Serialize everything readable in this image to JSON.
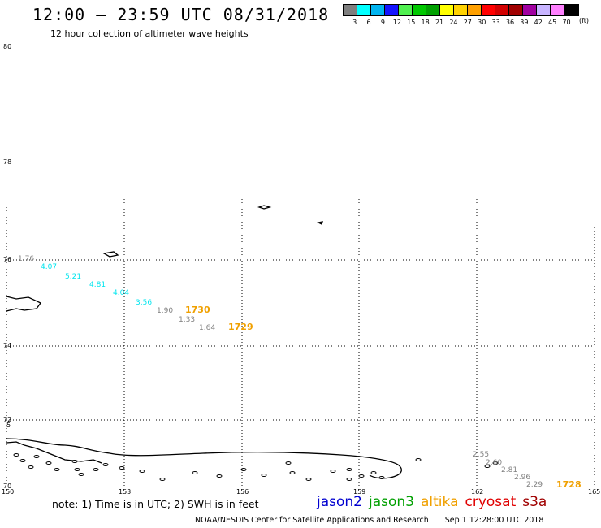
{
  "header": {
    "title": "12:00 – 23:59 UTC 08/31/2018",
    "subtitle": "12 hour collection of altimeter wave heights"
  },
  "legend": {
    "colors": [
      "#7f7f7f",
      "#00ffff",
      "#00b4f0",
      "#1414ff",
      "#50f050",
      "#00c800",
      "#00a000",
      "#ffff00",
      "#ffd200",
      "#ffa000",
      "#ff0000",
      "#d20000",
      "#a00000",
      "#a000a0",
      "#c8b4ff",
      "#ff80ff",
      "#000000"
    ],
    "labels": [
      "3",
      "6",
      "9",
      "12",
      "15",
      "18",
      "21",
      "24",
      "27",
      "30",
      "33",
      "36",
      "39",
      "42",
      "45",
      "70"
    ],
    "unit": "(ft)"
  },
  "axes": {
    "lat_labels": [
      "80",
      "78",
      "76",
      "74",
      "72",
      "70"
    ],
    "lon_labels": [
      "150",
      "153",
      "156",
      "159",
      "162",
      "165"
    ],
    "extra_left_labels": [
      "5"
    ]
  },
  "wave_labels": [
    {
      "text": "1.76",
      "color": "#808080"
    },
    {
      "text": "4.07",
      "color": "#00e5ee"
    },
    {
      "text": "5.21",
      "color": "#00e5ee"
    },
    {
      "text": "4.81",
      "color": "#00e5ee"
    },
    {
      "text": "4.04",
      "color": "#00e5ee"
    },
    {
      "text": "3.56",
      "color": "#00e5ee"
    },
    {
      "text": "1.90",
      "color": "#808080"
    },
    {
      "text": "1730",
      "color": "#f0a000"
    },
    {
      "text": "1.33",
      "color": "#808080"
    },
    {
      "text": "1.64",
      "color": "#808080"
    },
    {
      "text": "1729",
      "color": "#f0a000"
    },
    {
      "text": "2.55",
      "color": "#808080"
    },
    {
      "text": "2.60",
      "color": "#808080"
    },
    {
      "text": "2.81",
      "color": "#808080"
    },
    {
      "text": "2.96",
      "color": "#808080"
    },
    {
      "text": "2.29",
      "color": "#808080"
    },
    {
      "text": "1728",
      "color": "#f0a000"
    }
  ],
  "note": "note: 1) Time is in UTC; 2) SWH is in feet",
  "satellites": [
    {
      "name": "jason2",
      "color": "#0000d0"
    },
    {
      "name": "jason3",
      "color": "#00a000"
    },
    {
      "name": "altika",
      "color": "#f0a000"
    },
    {
      "name": "cryosat",
      "color": "#e00000"
    },
    {
      "name": "s3a",
      "color": "#a00000"
    }
  ],
  "footer": {
    "source": "NOAA/NESDIS Center for Satellite Applications and Research",
    "timestamp": "Sep  1 12:28:00 UTC 2018"
  }
}
